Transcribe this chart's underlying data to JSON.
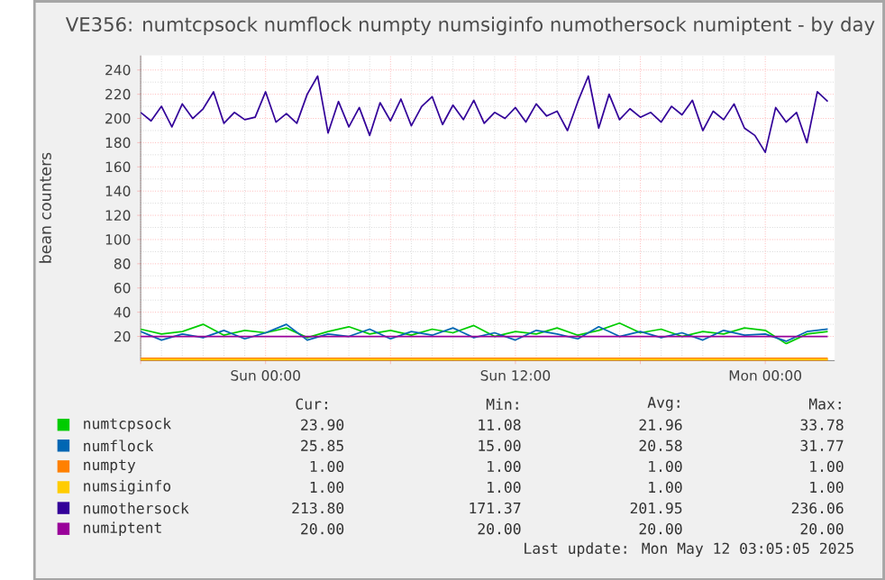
{
  "chart_data": {
    "type": "line",
    "title": "VE356: numtcpsock numflock numpty numsiginfo numothersock numiptent - by day",
    "ylabel": "bean counters",
    "x": [
      "2025-05-10T18:00",
      "2025-05-10T18:30",
      "2025-05-10T19:00",
      "2025-05-10T19:30",
      "2025-05-10T20:00",
      "2025-05-10T20:30",
      "2025-05-10T21:00",
      "2025-05-10T21:30",
      "2025-05-10T22:00",
      "2025-05-10T22:30",
      "2025-05-10T23:00",
      "2025-05-10T23:30",
      "2025-05-11T00:00",
      "2025-05-11T00:30",
      "2025-05-11T01:00",
      "2025-05-11T01:30",
      "2025-05-11T02:00",
      "2025-05-11T02:30",
      "2025-05-11T03:00",
      "2025-05-11T03:30",
      "2025-05-11T04:00",
      "2025-05-11T04:30",
      "2025-05-11T05:00",
      "2025-05-11T05:30",
      "2025-05-11T06:00",
      "2025-05-11T06:30",
      "2025-05-11T07:00",
      "2025-05-11T07:30",
      "2025-05-11T08:00",
      "2025-05-11T08:30",
      "2025-05-11T09:00",
      "2025-05-11T09:30",
      "2025-05-11T10:00",
      "2025-05-11T10:30",
      "2025-05-11T11:00",
      "2025-05-11T11:30",
      "2025-05-11T12:00",
      "2025-05-11T12:30",
      "2025-05-11T13:00",
      "2025-05-11T13:30",
      "2025-05-11T14:00",
      "2025-05-11T14:30",
      "2025-05-11T15:00",
      "2025-05-11T15:30",
      "2025-05-11T16:00",
      "2025-05-11T16:30",
      "2025-05-11T17:00",
      "2025-05-11T17:30",
      "2025-05-11T18:00",
      "2025-05-11T18:30",
      "2025-05-11T19:00",
      "2025-05-11T19:30",
      "2025-05-11T20:00",
      "2025-05-11T20:30",
      "2025-05-11T21:00",
      "2025-05-11T21:30",
      "2025-05-11T22:00",
      "2025-05-11T22:30",
      "2025-05-11T23:00",
      "2025-05-11T23:30",
      "2025-05-12T00:00",
      "2025-05-12T00:30",
      "2025-05-12T01:00",
      "2025-05-12T01:30",
      "2025-05-12T02:00",
      "2025-05-12T02:30",
      "2025-05-12T03:00"
    ],
    "series": [
      {
        "name": "numtcpsock",
        "color": "#00cc00",
        "x": [
          "2025-05-10T18:00",
          "2025-05-10T19:00",
          "2025-05-10T20:00",
          "2025-05-10T21:00",
          "2025-05-10T22:00",
          "2025-05-10T23:00",
          "2025-05-11T00:00",
          "2025-05-11T01:00",
          "2025-05-11T02:00",
          "2025-05-11T03:00",
          "2025-05-11T04:00",
          "2025-05-11T05:00",
          "2025-05-11T06:00",
          "2025-05-11T07:00",
          "2025-05-11T08:00",
          "2025-05-11T09:00",
          "2025-05-11T10:00",
          "2025-05-11T11:00",
          "2025-05-11T12:00",
          "2025-05-11T13:00",
          "2025-05-11T14:00",
          "2025-05-11T15:00",
          "2025-05-11T16:00",
          "2025-05-11T17:00",
          "2025-05-11T18:00",
          "2025-05-11T19:00",
          "2025-05-11T20:00",
          "2025-05-11T21:00",
          "2025-05-11T22:00",
          "2025-05-11T23:00",
          "2025-05-12T00:00",
          "2025-05-12T01:00",
          "2025-05-12T02:00",
          "2025-05-12T03:00"
        ],
        "values": [
          26,
          22,
          24,
          30,
          21,
          25,
          23,
          27,
          19,
          24,
          28,
          22,
          25,
          21,
          26,
          23,
          29,
          20,
          24,
          22,
          27,
          21,
          25,
          31,
          23,
          26,
          20,
          24,
          22,
          27,
          25,
          14,
          22,
          24
        ]
      },
      {
        "name": "numflock",
        "color": "#0066b3",
        "x": [
          "2025-05-10T18:00",
          "2025-05-10T19:00",
          "2025-05-10T20:00",
          "2025-05-10T21:00",
          "2025-05-10T22:00",
          "2025-05-10T23:00",
          "2025-05-11T00:00",
          "2025-05-11T01:00",
          "2025-05-11T02:00",
          "2025-05-11T03:00",
          "2025-05-11T04:00",
          "2025-05-11T05:00",
          "2025-05-11T06:00",
          "2025-05-11T07:00",
          "2025-05-11T08:00",
          "2025-05-11T09:00",
          "2025-05-11T10:00",
          "2025-05-11T11:00",
          "2025-05-11T12:00",
          "2025-05-11T13:00",
          "2025-05-11T14:00",
          "2025-05-11T15:00",
          "2025-05-11T16:00",
          "2025-05-11T17:00",
          "2025-05-11T18:00",
          "2025-05-11T19:00",
          "2025-05-11T20:00",
          "2025-05-11T21:00",
          "2025-05-11T22:00",
          "2025-05-11T23:00",
          "2025-05-12T00:00",
          "2025-05-12T01:00",
          "2025-05-12T02:00",
          "2025-05-12T03:00"
        ],
        "values": [
          24,
          17,
          22,
          19,
          25,
          18,
          23,
          30,
          17,
          22,
          20,
          26,
          18,
          24,
          21,
          27,
          19,
          23,
          17,
          25,
          22,
          18,
          28,
          20,
          24,
          19,
          23,
          17,
          25,
          21,
          22,
          16,
          24,
          26
        ]
      },
      {
        "name": "numpty",
        "color": "#ff8000",
        "x": [
          "2025-05-10T18:00",
          "2025-05-12T03:00"
        ],
        "values": [
          1,
          1
        ]
      },
      {
        "name": "numsiginfo",
        "color": "#ffcc00",
        "x": [
          "2025-05-10T18:00",
          "2025-05-12T03:00"
        ],
        "values": [
          1,
          1
        ]
      },
      {
        "name": "numothersock",
        "color": "#330099",
        "values": [
          205,
          198,
          210,
          193,
          212,
          200,
          208,
          222,
          196,
          205,
          199,
          201,
          222,
          197,
          204,
          196,
          220,
          235,
          188,
          214,
          193,
          209,
          186,
          213,
          198,
          216,
          194,
          210,
          218,
          195,
          211,
          199,
          215,
          196,
          205,
          200,
          209,
          197,
          212,
          202,
          206,
          190,
          214,
          235,
          192,
          220,
          199,
          208,
          201,
          205,
          197,
          210,
          203,
          215,
          190,
          206,
          199,
          212,
          192,
          186,
          172,
          209,
          197,
          205,
          180,
          222,
          214
        ]
      },
      {
        "name": "numiptent",
        "color": "#990099",
        "x": [
          "2025-05-10T18:00",
          "2025-05-12T03:00"
        ],
        "values": [
          20,
          20
        ]
      }
    ],
    "xlim": [
      "2025-05-10T18:00",
      "2025-05-12T03:20"
    ],
    "xticks": [
      {
        "value": "2025-05-10T18:00",
        "label": null
      },
      {
        "value": "2025-05-11T00:00",
        "label": "Sun 00:00"
      },
      {
        "value": "2025-05-11T06:00",
        "label": null
      },
      {
        "value": "2025-05-11T12:00",
        "label": "Sun 12:00"
      },
      {
        "value": "2025-05-11T18:00",
        "label": null
      },
      {
        "value": "2025-05-12T00:00",
        "label": "Mon 00:00"
      }
    ],
    "ylim": [
      0,
      252
    ],
    "yticks": [
      20,
      40,
      60,
      80,
      100,
      120,
      140,
      160,
      180,
      200,
      220,
      240
    ],
    "grid": true,
    "legend": "bottom",
    "line_style": "solid",
    "marker": "none",
    "annotations": [
      "Cur:",
      "Min:",
      "Avg:",
      "Max:",
      "23.90",
      "11.08",
      "21.96",
      "33.78",
      "25.85",
      "15.00",
      "20.58",
      "31.77",
      "1.00",
      "1.00",
      "1.00",
      "1.00",
      "1.00",
      "1.00",
      "1.00",
      "1.00",
      "213.80",
      "171.37",
      "201.95",
      "236.06",
      "20.00",
      "20.00",
      "20.00",
      "20.00",
      "Last update: Mon May 12 03:05:05 2025"
    ]
  }
}
